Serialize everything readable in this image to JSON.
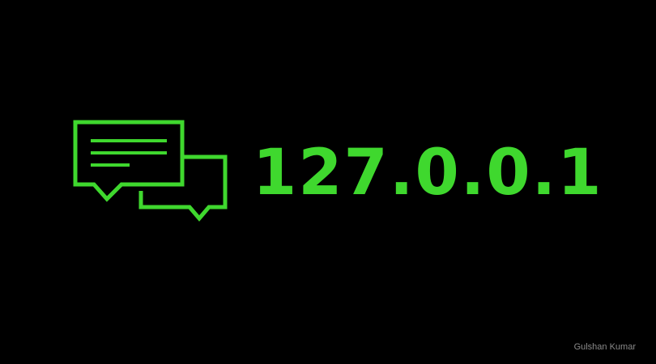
{
  "background_color": "#000000",
  "accent_color": "#3fd82e",
  "icon": {
    "name": "chat-bubbles-icon"
  },
  "headline": {
    "text": "127.0.0.1"
  },
  "credit": {
    "text": "Gulshan Kumar"
  }
}
